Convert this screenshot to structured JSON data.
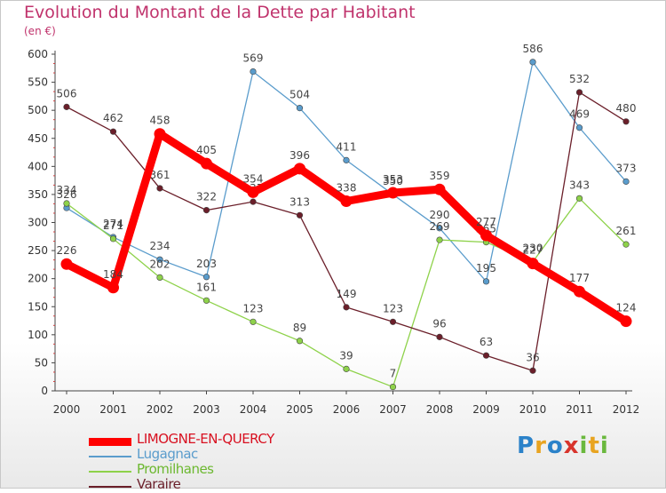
{
  "title": "Evolution du Montant de la Dette par Habitant",
  "subtitle": "(en €)",
  "brand": "Proxiti",
  "chart_data": {
    "type": "line",
    "title": "Evolution du Montant de la Dette par Habitant",
    "subtitle": "(en €)",
    "xlabel": "",
    "ylabel": "",
    "x": [
      "2000",
      "2001",
      "2002",
      "2003",
      "2004",
      "2005",
      "2006",
      "2007",
      "2008",
      "2009",
      "2010",
      "2011",
      "2012"
    ],
    "ylim": [
      0,
      600
    ],
    "yticks": [
      0,
      50,
      100,
      150,
      200,
      250,
      300,
      350,
      400,
      450,
      500,
      550,
      600
    ],
    "grid": false,
    "legend": "bottom-left",
    "series": [
      {
        "name": "Lugagnac",
        "color": "#5a9ccc",
        "values": [
          326,
          274,
          234,
          203,
          569,
          504,
          411,
          350,
          290,
          195,
          586,
          469,
          373
        ]
      },
      {
        "name": "Promilhanes",
        "color": "#8ed24a",
        "values": [
          334,
          271,
          202,
          161,
          123,
          89,
          39,
          7,
          269,
          265,
          230,
          343,
          261
        ]
      },
      {
        "name": "Varaire",
        "color": "#6b1f2a",
        "values": [
          506,
          462,
          361,
          322,
          337,
          313,
          149,
          123,
          96,
          63,
          36,
          532,
          480
        ]
      },
      {
        "name": "LIMOGNE-EN-QUERCY",
        "color": "#ff0000",
        "values": [
          226,
          184,
          458,
          405,
          354,
          396,
          338,
          353,
          359,
          277,
          227,
          177,
          124
        ]
      }
    ]
  },
  "legend_order": [
    "LIMOGNE-EN-QUERCY",
    "Lugagnac",
    "Promilhanes",
    "Varaire"
  ]
}
